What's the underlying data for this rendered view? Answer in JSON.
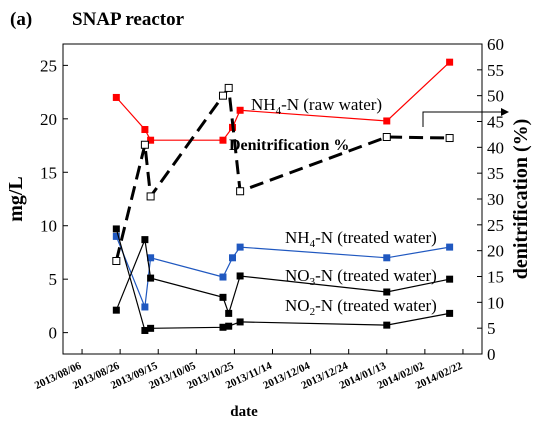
{
  "chart_data": {
    "type": "line",
    "panel": "(a)",
    "title": "SNAP reactor",
    "xlabel": "date",
    "ylabel_left": "mg/L",
    "ylabel_right": "denitrification (%)",
    "ylim_left": [
      -2,
      27
    ],
    "ylim_right": [
      0,
      60
    ],
    "xlim": [
      "2013-07-27",
      "2014-03-04"
    ],
    "grid": false,
    "x_ticks": [
      "2013/08/06",
      "2013/08/26",
      "2013/09/15",
      "2013/10/05",
      "2013/10/25",
      "2013/11/14",
      "2013/12/04",
      "2013/12/24",
      "2014/01/13",
      "2014/02/02",
      "2014/02/22"
    ],
    "y_ticks_left": [
      0,
      5,
      10,
      15,
      20,
      25
    ],
    "y_ticks_right": [
      0,
      5,
      10,
      15,
      20,
      25,
      30,
      35,
      40,
      45,
      50,
      55,
      60
    ],
    "series": [
      {
        "name": "NH4-N (raw water)",
        "axis": "left",
        "color": "#ff0000",
        "marker": "filled-square",
        "dash": false,
        "points": [
          [
            "2013-08-24",
            22.0
          ],
          [
            "2013-09-08",
            19.0
          ],
          [
            "2013-09-11",
            18.0
          ],
          [
            "2013-10-19",
            18.0
          ],
          [
            "2013-10-24",
            19.2
          ],
          [
            "2013-10-28",
            20.8
          ],
          [
            "2014-01-13",
            19.8
          ],
          [
            "2014-02-15",
            25.3
          ]
        ]
      },
      {
        "name": "NH4-N (treated water)",
        "axis": "left",
        "color": "#2058c0",
        "marker": "filled-square",
        "dash": false,
        "points": [
          [
            "2013-08-24",
            9.0
          ],
          [
            "2013-09-08",
            2.4
          ],
          [
            "2013-09-11",
            7.0
          ],
          [
            "2013-10-19",
            5.2
          ],
          [
            "2013-10-24",
            7.0
          ],
          [
            "2013-10-28",
            8.0
          ],
          [
            "2014-01-13",
            7.0
          ],
          [
            "2014-02-15",
            8.0
          ]
        ]
      },
      {
        "name": "NO3-N (treated water)",
        "axis": "left",
        "color": "#000000",
        "marker": "filled-square",
        "dash": false,
        "points": [
          [
            "2013-08-24",
            2.1
          ],
          [
            "2013-09-08",
            8.7
          ],
          [
            "2013-09-11",
            5.1
          ],
          [
            "2013-10-19",
            3.3
          ],
          [
            "2013-10-22",
            1.8
          ],
          [
            "2013-10-28",
            5.3
          ],
          [
            "2014-01-13",
            3.8
          ],
          [
            "2014-02-15",
            5.0
          ]
        ]
      },
      {
        "name": "NO2-N (treated water)",
        "axis": "left",
        "color": "#000000",
        "marker": "filled-square",
        "dash": false,
        "points": [
          [
            "2013-08-24",
            9.7
          ],
          [
            "2013-09-08",
            0.2
          ],
          [
            "2013-09-11",
            0.4
          ],
          [
            "2013-10-19",
            0.5
          ],
          [
            "2013-10-22",
            0.6
          ],
          [
            "2013-10-28",
            1.0
          ],
          [
            "2014-01-13",
            0.7
          ],
          [
            "2014-02-15",
            1.8
          ]
        ]
      },
      {
        "name": "Denitrification %",
        "axis": "right",
        "color": "#000000",
        "marker": "open-square",
        "dash": true,
        "points": [
          [
            "2013-08-24",
            18.0
          ],
          [
            "2013-09-08",
            40.5
          ],
          [
            "2013-09-11",
            30.5
          ],
          [
            "2013-10-19",
            50.0
          ],
          [
            "2013-10-22",
            51.5
          ],
          [
            "2013-10-28",
            31.5
          ],
          [
            "2014-01-13",
            42.0
          ],
          [
            "2014-02-15",
            41.8
          ]
        ]
      }
    ],
    "annotations": [
      {
        "text": "NH",
        "sub": "4",
        "rest": "-N (raw water)",
        "series": 0
      },
      {
        "text": "Denitrification %",
        "series": 4
      },
      {
        "text": "NH",
        "sub": "4",
        "rest": "-N (treated water)",
        "series": 1
      },
      {
        "text": "NO",
        "sub": "3",
        "rest": "-N (treated water)",
        "series": 2
      },
      {
        "text": "NO",
        "sub": "2",
        "rest": "-N  (treated water)",
        "series": 3
      }
    ]
  }
}
